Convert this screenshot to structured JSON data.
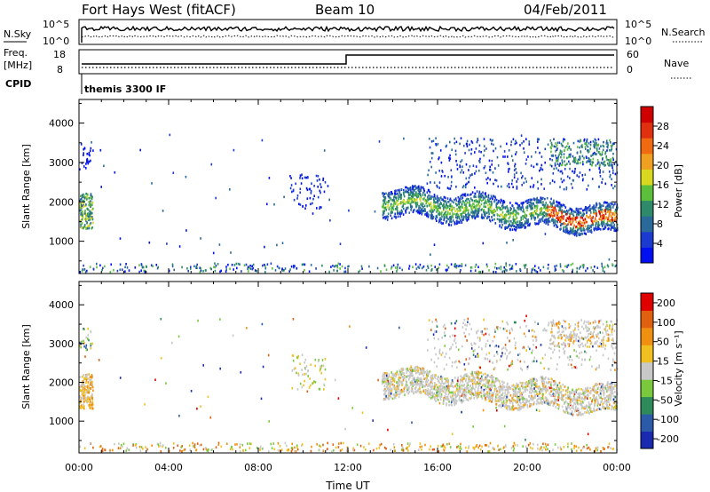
{
  "header": {
    "station": "Fort Hays West (fitACF)",
    "beam": "Beam 10",
    "date": "04/Feb/2011"
  },
  "top_panels": {
    "nsky": {
      "label": "N.Sky",
      "tick_hi": "10^5",
      "tick_lo": "10^0",
      "right_label": "N.Search",
      "right_tick_hi": "10^5",
      "right_tick_lo": "10^0"
    },
    "freq": {
      "label_line1": "Freq.",
      "label_line2": "[MHz]",
      "tick_hi": "18",
      "tick_lo": "8",
      "right_label": "Nave",
      "right_tick_hi": "60",
      "right_tick_lo": "0"
    },
    "cpid": {
      "label": "CPID",
      "value": "themis 3300 IF"
    }
  },
  "chart_data": [
    {
      "type": "heatmap",
      "name": "power",
      "ylabel": "Slant Range [km]",
      "yticks": [
        1000,
        2000,
        3000,
        4000
      ],
      "ylim": [
        180,
        4600
      ],
      "xlim": [
        0,
        24
      ],
      "colorbar": {
        "label": "Power [dB]",
        "ticks": [
          "4",
          "8",
          "12",
          "16",
          "20",
          "24",
          "28"
        ],
        "colors": [
          "#0010f0",
          "#1a3ad0",
          "#2a6a9a",
          "#2e8a6a",
          "#5cbf3c",
          "#d8d820",
          "#f0a020",
          "#ef6a10",
          "#e03010",
          "#d00000"
        ]
      }
    },
    {
      "type": "heatmap",
      "name": "velocity",
      "ylabel": "Slant Range [km]",
      "yticks": [
        1000,
        2000,
        3000,
        4000
      ],
      "ylim": [
        180,
        4600
      ],
      "xlim": [
        0,
        24
      ],
      "xlabel": "Time UT",
      "xticks": [
        "00:00",
        "04:00",
        "08:00",
        "12:00",
        "16:00",
        "20:00",
        "00:00"
      ],
      "colorbar": {
        "label": "Velocity [m s⁻¹]",
        "ticks": [
          "200",
          "100",
          "50",
          "15",
          "-15",
          "-50",
          "-100",
          "-200"
        ],
        "colors": [
          "#1a2ab0",
          "#2a5aa8",
          "#2e8a5a",
          "#7ac83c",
          "#c8c8c8",
          "#f0c020",
          "#f09010",
          "#e06010",
          "#e00000"
        ]
      }
    }
  ]
}
